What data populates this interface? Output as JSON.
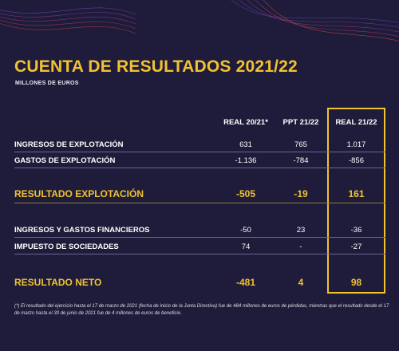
{
  "title": "CUENTA DE RESULTADOS 2021/22",
  "subtitle": "MILLONES DE EUROS",
  "colors": {
    "background": "#1e1c3a",
    "accent": "#f2c230",
    "text": "#ffffff"
  },
  "columns": [
    "REAL 20/21*",
    "PPT 21/22",
    "REAL 21/22"
  ],
  "rows": [
    {
      "label": "INGRESOS DE EXPLOTACIÓN",
      "values": [
        "631",
        "765",
        "1.017"
      ]
    },
    {
      "label": "GASTOS DE EXPLOTACIÓN",
      "values": [
        "-1.136",
        "-784",
        "-856"
      ]
    },
    {
      "label": "RESULTADO EXPLOTACIÓN",
      "values": [
        "-505",
        "-19",
        "161"
      ]
    },
    {
      "label": "INGRESOS Y GASTOS FINANCIEROS",
      "values": [
        "-50",
        "23",
        "-36"
      ]
    },
    {
      "label": "IMPUESTO DE SOCIEDADES",
      "values": [
        "74",
        "-",
        "-27"
      ]
    },
    {
      "label": "RESULTADO NETO",
      "values": [
        "-481",
        "4",
        "98"
      ]
    }
  ],
  "footnote": "(*) El resultado del ejercicio hasta el 17 de marzo de 2021 (fecha de inicio de la Junta Directiva) fue de 484 millones de euros de pérdidas, mientras que el resultado desde el 17 de marzo hasta el 30 de junio de 2021 fue de 4 millones de euros de beneficio."
}
